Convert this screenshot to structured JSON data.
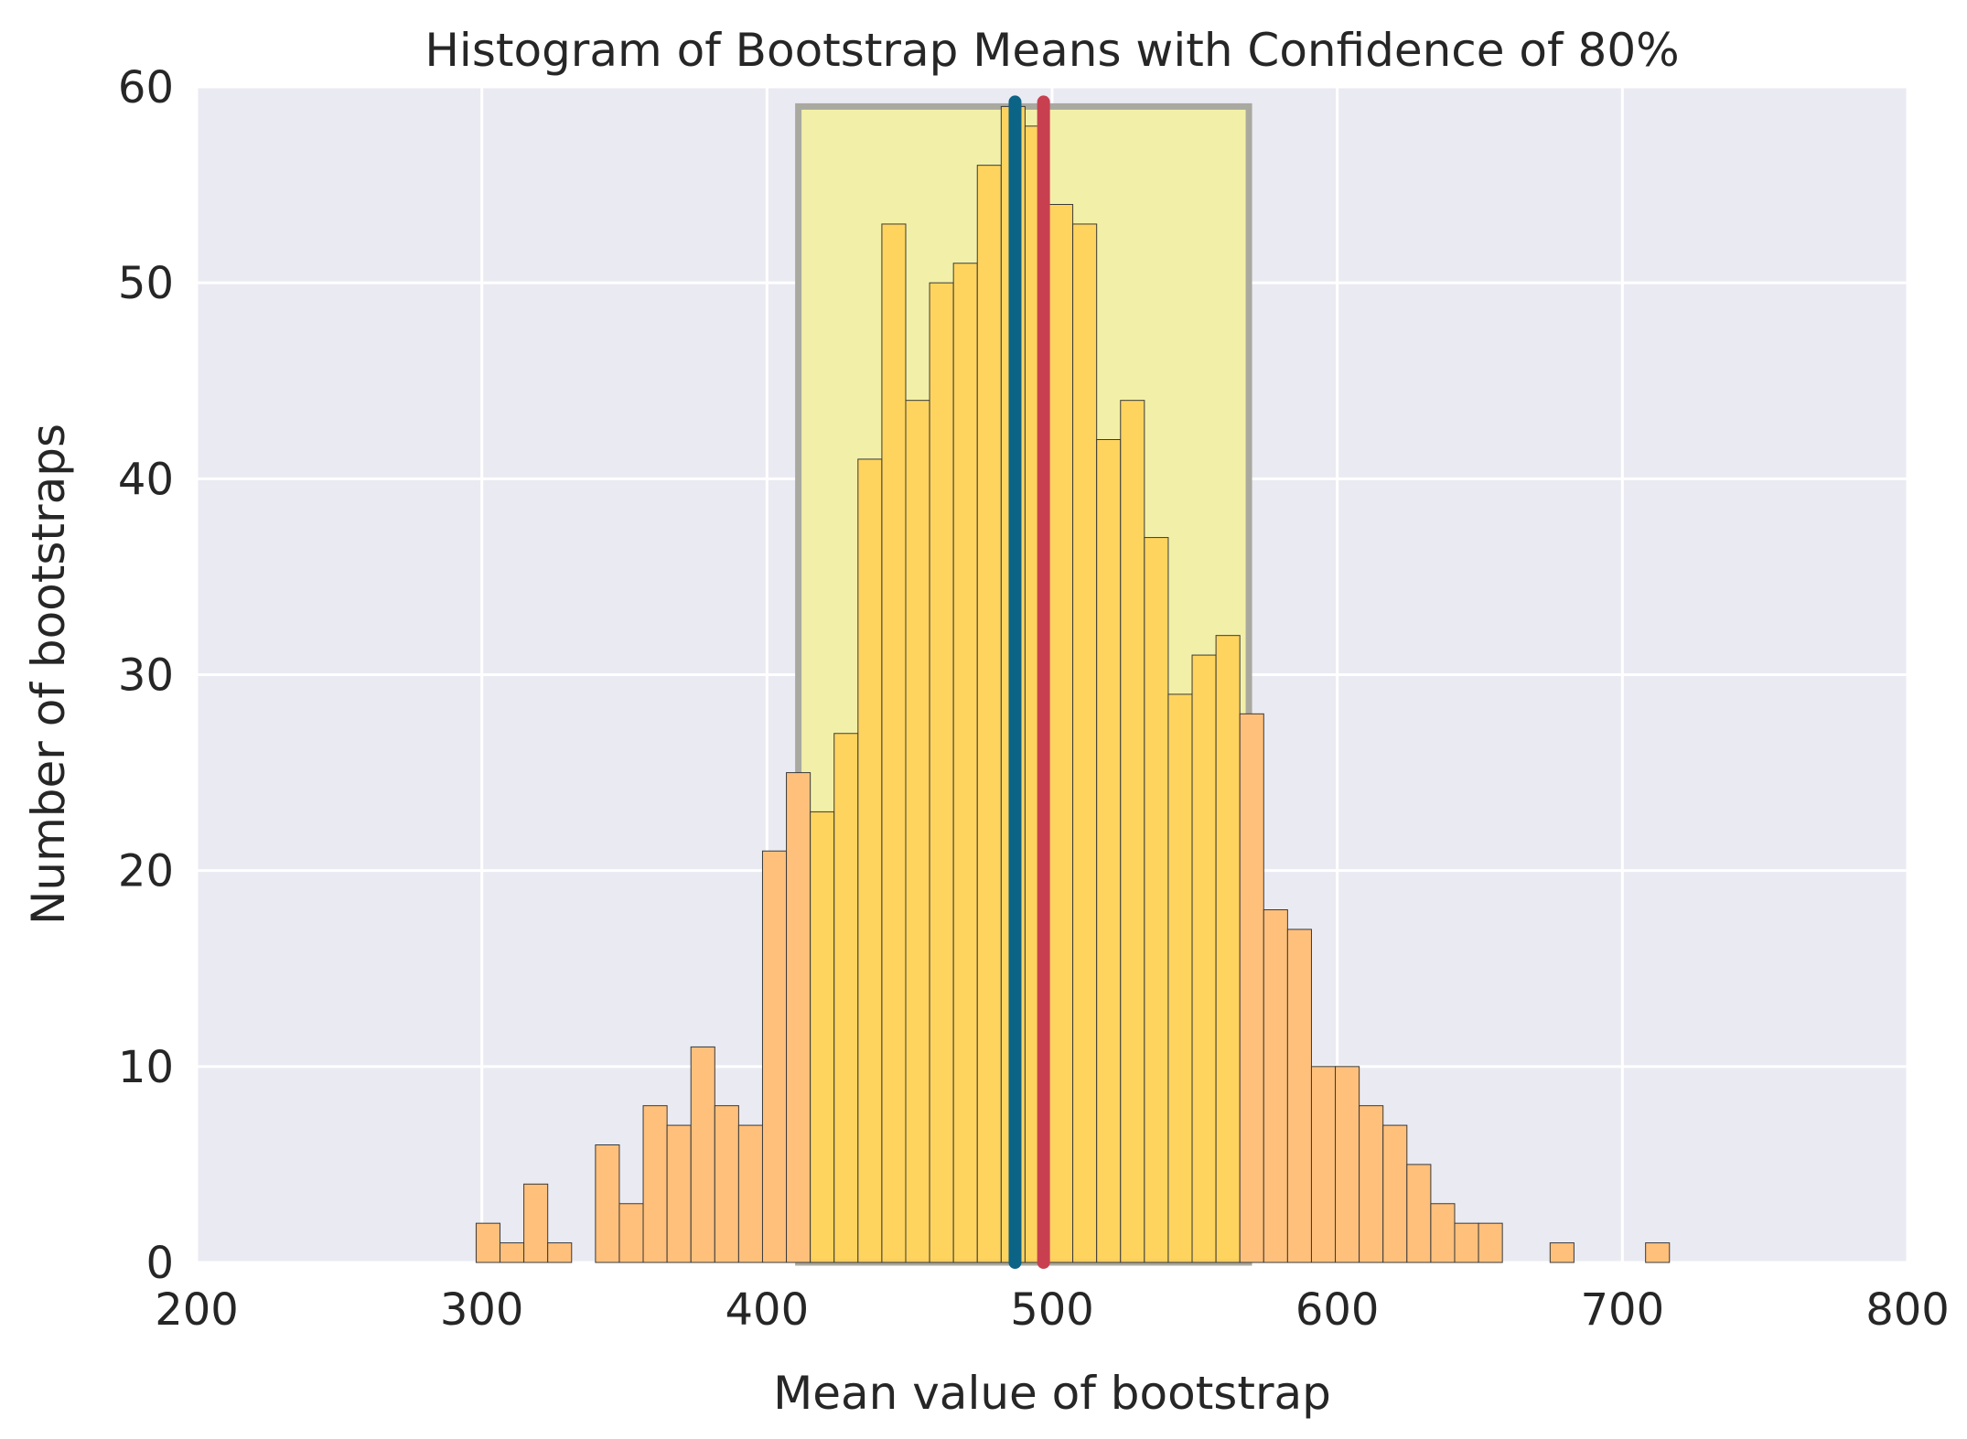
{
  "chart_data": {
    "type": "bar",
    "title": "Histogram of Bootstrap Means with Confidence of 80%",
    "xlabel": "Mean value of bootstrap",
    "ylabel": "Number of bootstraps",
    "xlim": [
      200,
      800
    ],
    "ylim": [
      0,
      60
    ],
    "xticks": [
      "200",
      "300",
      "400",
      "500",
      "600",
      "700",
      "800"
    ],
    "yticks": [
      "0",
      "10",
      "20",
      "30",
      "40",
      "50",
      "60"
    ],
    "grid": true,
    "bin_edges_start": 298,
    "bin_width": 8.37,
    "counts": [
      2,
      1,
      4,
      1,
      0,
      6,
      3,
      8,
      7,
      11,
      8,
      7,
      21,
      25,
      23,
      27,
      41,
      53,
      44,
      50,
      51,
      56,
      59,
      58,
      54,
      53,
      42,
      44,
      37,
      29,
      31,
      32,
      28,
      18,
      17,
      10,
      10,
      8,
      7,
      5,
      3,
      2,
      2,
      0,
      0,
      1,
      0,
      0,
      0,
      1
    ],
    "confidence_interval": [
      411,
      569
    ],
    "confidence_box_top": 59,
    "markers": [
      {
        "x": 487,
        "color": "#0b6386"
      },
      {
        "x": 497,
        "color": "#c8404f"
      }
    ],
    "colors": {
      "background": "#eaeaf2",
      "grid": "#ffffff",
      "bar_outside": "#ffc07c",
      "bar_inside": "#ffd159",
      "bar_edge": "#3a3a3a",
      "ci_fill": "#f2f0a8",
      "ci_edge": "#a9a9a0"
    }
  }
}
